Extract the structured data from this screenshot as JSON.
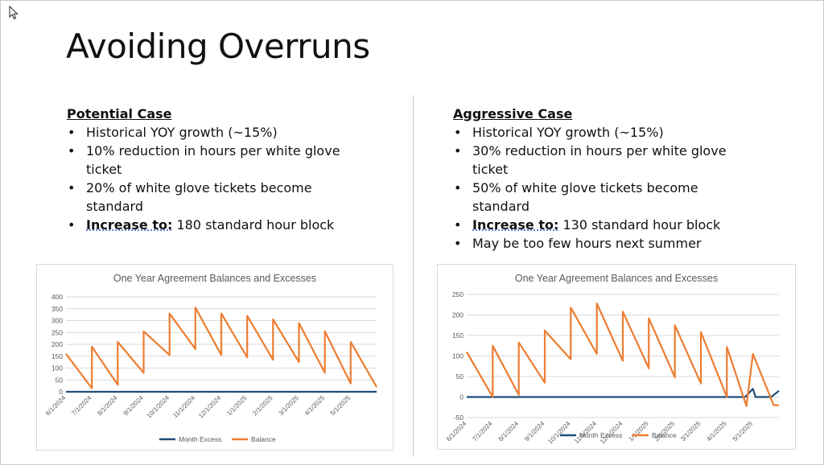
{
  "slide": {
    "title": "Avoiding Overruns",
    "left_case": {
      "heading": "Potential Case",
      "bullets": [
        "Historical YOY growth (~15%)",
        "10% reduction in hours per white glove ticket",
        "20% of white glove tickets become standard"
      ],
      "increase_label": "Increase to:",
      "increase_value": " 180 standard hour block"
    },
    "right_case": {
      "heading": "Aggressive Case",
      "bullets": [
        "Historical YOY growth (~15%)",
        "30% reduction in hours per white glove ticket",
        "50% of white glove tickets become standard"
      ],
      "increase_label": "Increase to:",
      "increase_value": " 130 standard hour block",
      "extra_bullet": "May be too few hours next summer"
    }
  },
  "colors": {
    "balance": "#ed7d31",
    "excess": "#1f4e79",
    "grid": "#d9d9d9",
    "axis_text": "#595959"
  },
  "chart_data": [
    {
      "type": "line",
      "title": "One Year Agreement Balances and Excesses",
      "x_ticks": [
        "6/1/2024",
        "7/1/2024",
        "8/1/2024",
        "9/1/2024",
        "10/1/2024",
        "11/1/2024",
        "12/1/2024",
        "1/1/2025",
        "2/1/2025",
        "3/1/2025",
        "4/1/2025",
        "5/1/2025"
      ],
      "ylim": [
        0,
        400
      ],
      "yticks": [
        0,
        50,
        100,
        150,
        200,
        250,
        300,
        350,
        400
      ],
      "legend_position": "bottom",
      "series": [
        {
          "name": "Month Excess",
          "x": [
            0,
            12
          ],
          "y": [
            0,
            0
          ]
        },
        {
          "name": "Balance",
          "x": [
            0,
            1,
            1,
            2,
            2,
            3,
            3,
            4,
            4,
            5,
            5,
            6,
            6,
            7,
            7,
            8,
            8,
            9,
            9,
            10,
            10,
            11,
            11,
            12
          ],
          "y": [
            160,
            15,
            190,
            30,
            210,
            80,
            255,
            155,
            330,
            180,
            355,
            155,
            330,
            145,
            320,
            135,
            305,
            125,
            290,
            80,
            255,
            35,
            210,
            20
          ]
        }
      ]
    },
    {
      "type": "line",
      "title": "One Year Agreement Balances and Excesses",
      "x_ticks": [
        "6/1/2024",
        "7/1/2024",
        "8/1/2024",
        "9/1/2024",
        "10/1/2024",
        "11/1/2024",
        "12/1/2024",
        "1/1/2025",
        "2/1/2025",
        "3/1/2025",
        "4/1/2025",
        "5/1/2025"
      ],
      "ylim": [
        -50,
        250
      ],
      "yticks": [
        -50,
        0,
        50,
        100,
        150,
        200,
        250
      ],
      "legend_position": "bottom",
      "series": [
        {
          "name": "Month Excess",
          "x": [
            0,
            10.7,
            11.0,
            11.1,
            11.7,
            12
          ],
          "y": [
            0,
            0,
            20,
            0,
            0,
            15
          ]
        },
        {
          "name": "Balance",
          "x": [
            0,
            1,
            1,
            2,
            2,
            3,
            3,
            4,
            4,
            5,
            5,
            6,
            6,
            7,
            7,
            8,
            8,
            9,
            9,
            10,
            10,
            10.75,
            11,
            11.8,
            12
          ],
          "y": [
            110,
            0,
            125,
            5,
            133,
            35,
            162,
            92,
            218,
            105,
            228,
            88,
            208,
            70,
            192,
            48,
            175,
            33,
            158,
            0,
            122,
            -22,
            105,
            -20,
            -20
          ]
        }
      ]
    }
  ]
}
